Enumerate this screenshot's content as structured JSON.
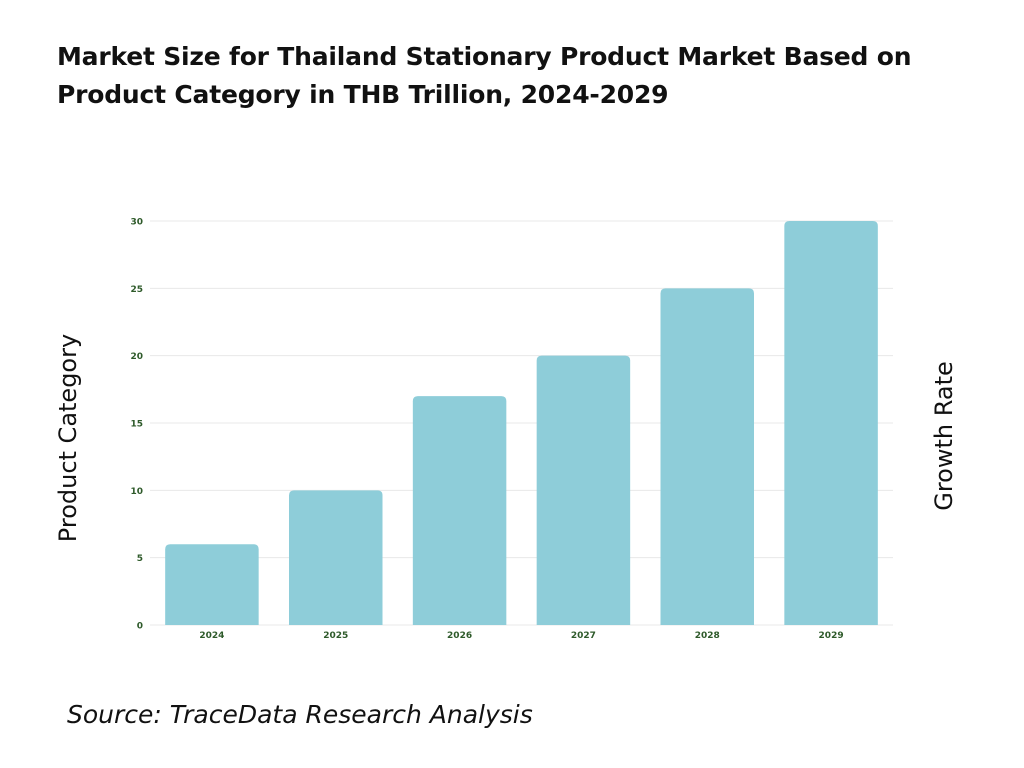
{
  "title": "Market Size for Thailand Stationary Product Market Based on Product Category in THB Trillion, 2024-2029",
  "source": "Source: TraceData Research Analysis",
  "colors": {
    "bar": "#8ecdd9",
    "tick_text": "#2e5a2a",
    "grid": "#e8e8e8"
  },
  "chart_data": {
    "type": "bar",
    "categories": [
      "2024",
      "2025",
      "2026",
      "2027",
      "2028",
      "2029"
    ],
    "values": [
      6,
      10,
      17,
      20,
      25,
      30
    ],
    "ylabel": "Product Category",
    "ylabel_right": "Growth Rate",
    "ylim": [
      0,
      30
    ],
    "yticks": [
      0,
      5,
      10,
      15,
      20,
      25,
      30
    ],
    "grid": true,
    "legend": "none"
  }
}
